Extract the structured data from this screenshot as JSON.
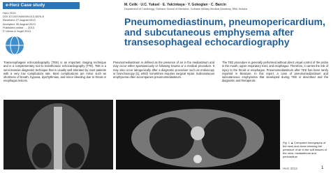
{
  "header": {
    "section": "e-Herz Case study",
    "meta": [
      "Herz 2013",
      "DOI 10.1007/s00059-013-3876-8",
      "Received: 27 August 2013",
      "Accepted: 30 August 2013",
      "Published online: ... 2013",
      "© Urban & Vogel 2013"
    ],
    "authors": "M. Celik · U.C. Yuksel · E. Yalcinkaya · Y. Gokoglan · C. Barcin",
    "affiliation": "Department of Cardiology, Gulhane School of Medicine, Gulhane Military Medical Academy, Etlik, Ankara",
    "title": "Pneumomediastinum, pneumopericardium, and subcutaneous emphysema after transesophageal echocardiography"
  },
  "body": {
    "columns": [
      "Transesophageal echocardiography (TEE) is an important imaging technique and is a complementary tool to transthoracic echocardiography (TTE). TEE is a semi-invasive diagnostic technique that is usually well tolerated by most patients with a very low complication rate. Most complications are minor such as shortness of breath, hypoxia, dysrhythmias, and minor bleeding due to throat or esophagus lesions.",
      "Pneumomediastinum is defined as the presence of air in the mediastinum and may occur either spontaneously or following trauma or a medical procedure. It may also occur iatrogenically after a diagnostic procedure such as endoscopy or bronchoscopy [1], which sometimes requires surgical repair. Subcutaneous emphysema often accompanies pneumomediastinum.",
      "The TEE procedure is generally performed without direct visual control of the probe in the mouth, upper respiratory tract, and esophagus. Therefore, it carries the risk of injury to the throat or esophagus. Pneumomediastinum after TEE has been rarely reported in literature. In this report, a case of pneumomediastinum and subcutaneous emphysema that developed during TEE is described and the diagnostic and therapeutic"
    ]
  },
  "figure": {
    "caption": "Fig. 1 ▲ Computed tomography of the neck and chest showing the presence of air in the soft tissues of the neck, mediastinum and pericardium"
  },
  "footer": {
    "journal": "Herz 2013",
    "page": "1"
  }
}
